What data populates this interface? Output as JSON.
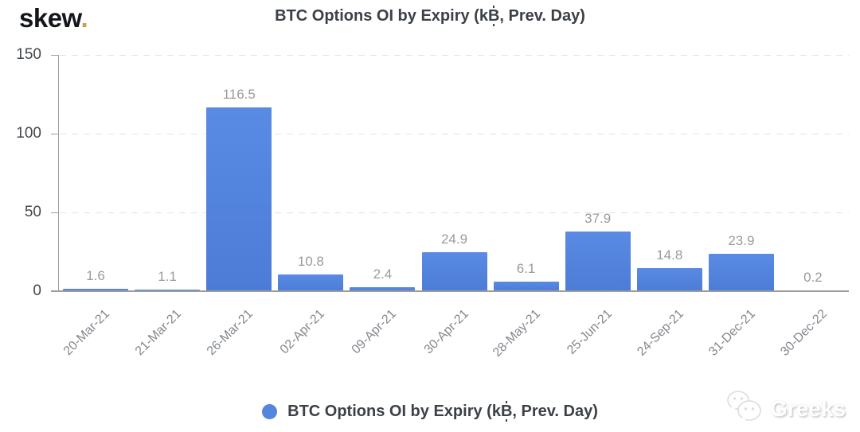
{
  "logo": {
    "text": "skew",
    "dot": ".",
    "dot_color": "#c9a23f"
  },
  "title": {
    "full": "BTC Options OI by Expiry (k₿, Prev. Day)",
    "pre": "BTC Options OI by Expiry (k",
    "symbol": "B",
    "post": ", Prev. Day)"
  },
  "legend": {
    "full": "BTC Options OI by Expiry (k₿, Prev. Day)",
    "pre": "BTC Options OI by Expiry (k",
    "symbol": "B",
    "post": ", Prev. Day)",
    "marker_color": "#5585de"
  },
  "watermark": {
    "icon": "wechat-icon",
    "text": "Greeks"
  },
  "chart_data": {
    "type": "bar",
    "title": "BTC Options OI by Expiry (k₿, Prev. Day)",
    "categories": [
      "20-Mar-21",
      "21-Mar-21",
      "26-Mar-21",
      "02-Apr-21",
      "09-Apr-21",
      "30-Apr-21",
      "28-May-21",
      "25-Jun-21",
      "24-Sep-21",
      "31-Dec-21",
      "30-Dec-22"
    ],
    "values": [
      1.6,
      1.1,
      116.5,
      10.8,
      2.4,
      24.9,
      6.1,
      37.9,
      14.8,
      23.9,
      0.2
    ],
    "value_labels": [
      "1.6",
      "1.1",
      "116.5",
      "10.8",
      "2.4",
      "24.9",
      "6.1",
      "37.9",
      "14.8",
      "23.9",
      "0.2"
    ],
    "xlabel": "",
    "ylabel": "",
    "y_ticks": [
      0,
      50,
      100,
      150
    ],
    "ylim": [
      0,
      150
    ],
    "bar_color": "#5585de",
    "value_label_color": "#9b9b9b",
    "grid": "dashed-horizontal",
    "legend_position": "bottom",
    "x_label_rotation_deg": -45
  }
}
